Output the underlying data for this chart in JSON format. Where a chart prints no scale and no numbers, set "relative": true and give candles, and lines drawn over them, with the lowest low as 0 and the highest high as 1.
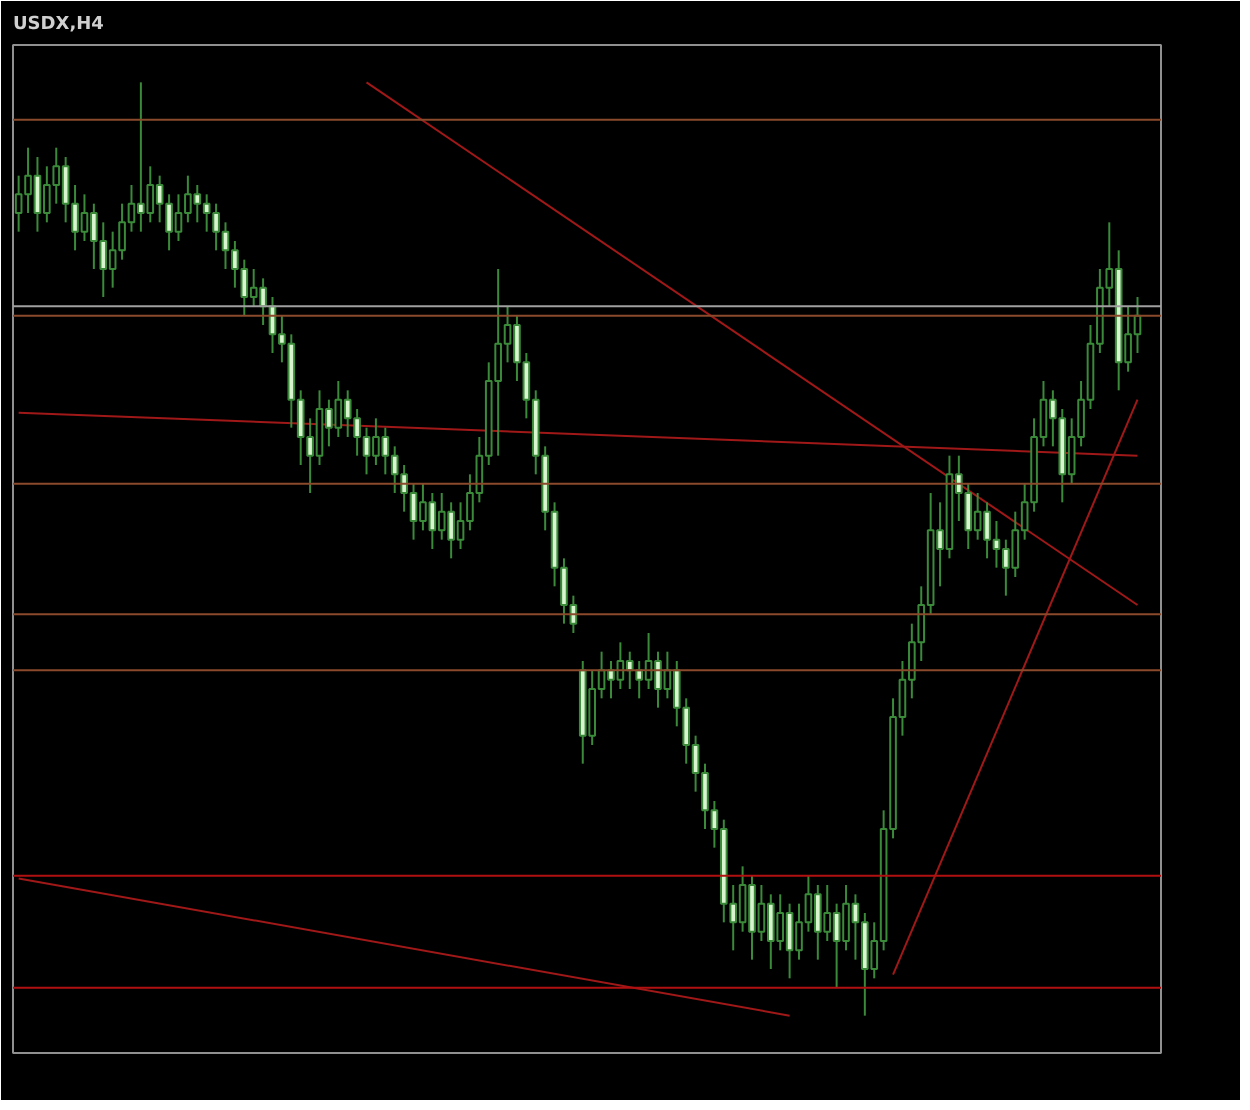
{
  "chart_data": {
    "type": "candlestick",
    "title": "USDX,H4",
    "relative": true,
    "grid": false,
    "categories": [
      null,
      null,
      null,
      null,
      null,
      null,
      null,
      null,
      null,
      null,
      null,
      null,
      null,
      null,
      null,
      null,
      null,
      null,
      null,
      null,
      null,
      null,
      null,
      null,
      null,
      null,
      null,
      null,
      null,
      null,
      null,
      null,
      null,
      null,
      null,
      null,
      null,
      null,
      null,
      null,
      null,
      null,
      null,
      null,
      null,
      null,
      null,
      null,
      null,
      null,
      null,
      null,
      null,
      null,
      null,
      null,
      null,
      null,
      null,
      null,
      null,
      null,
      null,
      null,
      null,
      null,
      null,
      null,
      null,
      null,
      null,
      null,
      null,
      null,
      null,
      null,
      null,
      null,
      null,
      null,
      null,
      null,
      null,
      null,
      null,
      null,
      null,
      null,
      null,
      null,
      null,
      null,
      null,
      null,
      null,
      null,
      null,
      null,
      null,
      null,
      null,
      null,
      null,
      null,
      null,
      null,
      null,
      null,
      null,
      null,
      null,
      null,
      null,
      null,
      null,
      null,
      null,
      null,
      null,
      null
    ],
    "ohlc": [
      [
        0.86,
        0.9,
        0.84,
        0.88
      ],
      [
        0.88,
        0.93,
        0.86,
        0.9
      ],
      [
        0.9,
        0.92,
        0.84,
        0.86
      ],
      [
        0.86,
        0.91,
        0.85,
        0.89
      ],
      [
        0.89,
        0.93,
        0.87,
        0.91
      ],
      [
        0.91,
        0.92,
        0.85,
        0.87
      ],
      [
        0.87,
        0.89,
        0.82,
        0.84
      ],
      [
        0.84,
        0.88,
        0.83,
        0.86
      ],
      [
        0.86,
        0.87,
        0.8,
        0.83
      ],
      [
        0.83,
        0.85,
        0.77,
        0.8
      ],
      [
        0.8,
        0.84,
        0.78,
        0.82
      ],
      [
        0.82,
        0.87,
        0.81,
        0.85
      ],
      [
        0.85,
        0.89,
        0.84,
        0.87
      ],
      [
        0.87,
        1,
        0.84,
        0.86
      ],
      [
        0.86,
        0.91,
        0.85,
        0.89
      ],
      [
        0.89,
        0.9,
        0.85,
        0.87
      ],
      [
        0.87,
        0.88,
        0.82,
        0.84
      ],
      [
        0.84,
        0.88,
        0.83,
        0.86
      ],
      [
        0.86,
        0.9,
        0.85,
        0.88
      ],
      [
        0.88,
        0.89,
        0.85,
        0.87
      ],
      [
        0.87,
        0.88,
        0.84,
        0.86
      ],
      [
        0.86,
        0.87,
        0.82,
        0.84
      ],
      [
        0.84,
        0.85,
        0.8,
        0.82
      ],
      [
        0.82,
        0.83,
        0.78,
        0.8
      ],
      [
        0.8,
        0.81,
        0.75,
        0.77
      ],
      [
        0.77,
        0.8,
        0.76,
        0.78
      ],
      [
        0.78,
        0.79,
        0.74,
        0.76
      ],
      [
        0.76,
        0.77,
        0.71,
        0.73
      ],
      [
        0.73,
        0.75,
        0.7,
        0.72
      ],
      [
        0.72,
        0.73,
        0.63,
        0.66
      ],
      [
        0.66,
        0.67,
        0.59,
        0.62
      ],
      [
        0.62,
        0.64,
        0.56,
        0.6
      ],
      [
        0.6,
        0.67,
        0.59,
        0.65
      ],
      [
        0.65,
        0.66,
        0.61,
        0.63
      ],
      [
        0.63,
        0.68,
        0.62,
        0.66
      ],
      [
        0.66,
        0.67,
        0.62,
        0.64
      ],
      [
        0.64,
        0.65,
        0.6,
        0.62
      ],
      [
        0.62,
        0.63,
        0.58,
        0.6
      ],
      [
        0.6,
        0.64,
        0.59,
        0.62
      ],
      [
        0.62,
        0.63,
        0.58,
        0.6
      ],
      [
        0.6,
        0.61,
        0.56,
        0.58
      ],
      [
        0.58,
        0.59,
        0.54,
        0.56
      ],
      [
        0.56,
        0.57,
        0.51,
        0.53
      ],
      [
        0.53,
        0.57,
        0.52,
        0.55
      ],
      [
        0.55,
        0.56,
        0.5,
        0.52
      ],
      [
        0.52,
        0.56,
        0.51,
        0.54
      ],
      [
        0.54,
        0.55,
        0.49,
        0.51
      ],
      [
        0.51,
        0.55,
        0.5,
        0.53
      ],
      [
        0.53,
        0.58,
        0.52,
        0.56
      ],
      [
        0.56,
        0.62,
        0.55,
        0.6
      ],
      [
        0.6,
        0.7,
        0.59,
        0.68
      ],
      [
        0.68,
        0.8,
        0.6,
        0.72
      ],
      [
        0.72,
        0.76,
        0.7,
        0.74
      ],
      [
        0.74,
        0.75,
        0.68,
        0.7
      ],
      [
        0.7,
        0.71,
        0.64,
        0.66
      ],
      [
        0.66,
        0.67,
        0.58,
        0.6
      ],
      [
        0.6,
        0.61,
        0.52,
        0.54
      ],
      [
        0.54,
        0.55,
        0.46,
        0.48
      ],
      [
        0.48,
        0.49,
        0.42,
        0.44
      ],
      [
        0.44,
        0.45,
        0.41,
        0.42
      ],
      [
        0.37,
        0.38,
        0.27,
        0.3
      ],
      [
        0.3,
        0.37,
        0.29,
        0.35
      ],
      [
        0.35,
        0.39,
        0.34,
        0.37
      ],
      [
        0.37,
        0.38,
        0.34,
        0.36
      ],
      [
        0.36,
        0.4,
        0.35,
        0.38
      ],
      [
        0.38,
        0.39,
        0.35,
        0.37
      ],
      [
        0.37,
        0.38,
        0.34,
        0.36
      ],
      [
        0.36,
        0.41,
        0.35,
        0.38
      ],
      [
        0.38,
        0.39,
        0.33,
        0.35
      ],
      [
        0.35,
        0.39,
        0.34,
        0.37
      ],
      [
        0.37,
        0.38,
        0.31,
        0.33
      ],
      [
        0.33,
        0.34,
        0.27,
        0.29
      ],
      [
        0.29,
        0.3,
        0.24,
        0.26
      ],
      [
        0.26,
        0.27,
        0.2,
        0.22
      ],
      [
        0.22,
        0.23,
        0.18,
        0.2
      ],
      [
        0.2,
        0.21,
        0.1,
        0.12
      ],
      [
        0.12,
        0.14,
        0.07,
        0.1
      ],
      [
        0.1,
        0.16,
        0.09,
        0.14
      ],
      [
        0.14,
        0.15,
        0.06,
        0.09
      ],
      [
        0.09,
        0.14,
        0.08,
        0.12
      ],
      [
        0.12,
        0.13,
        0.05,
        0.08
      ],
      [
        0.08,
        0.13,
        0.07,
        0.11
      ],
      [
        0.11,
        0.12,
        0.04,
        0.07
      ],
      [
        0.07,
        0.12,
        0.06,
        0.1
      ],
      [
        0.1,
        0.15,
        0.09,
        0.13
      ],
      [
        0.13,
        0.14,
        0.06,
        0.09
      ],
      [
        0.09,
        0.14,
        0.08,
        0.11
      ],
      [
        0.11,
        0.12,
        0.03,
        0.08
      ],
      [
        0.08,
        0.14,
        0.07,
        0.12
      ],
      [
        0.12,
        0.13,
        0.06,
        0.1
      ],
      [
        0.1,
        0.11,
        0,
        0.05
      ],
      [
        0.05,
        0.1,
        0.04,
        0.08
      ],
      [
        0.08,
        0.22,
        0.07,
        0.2
      ],
      [
        0.2,
        0.34,
        0.19,
        0.32
      ],
      [
        0.32,
        0.38,
        0.3,
        0.36
      ],
      [
        0.36,
        0.42,
        0.34,
        0.4
      ],
      [
        0.4,
        0.46,
        0.38,
        0.44
      ],
      [
        0.44,
        0.56,
        0.43,
        0.52
      ],
      [
        0.52,
        0.55,
        0.46,
        0.5
      ],
      [
        0.5,
        0.6,
        0.49,
        0.58
      ],
      [
        0.58,
        0.6,
        0.53,
        0.56
      ],
      [
        0.56,
        0.57,
        0.5,
        0.52
      ],
      [
        0.52,
        0.56,
        0.51,
        0.54
      ],
      [
        0.54,
        0.55,
        0.49,
        0.51
      ],
      [
        0.51,
        0.53,
        0.48,
        0.5
      ],
      [
        0.5,
        0.51,
        0.45,
        0.48
      ],
      [
        0.48,
        0.54,
        0.47,
        0.52
      ],
      [
        0.52,
        0.57,
        0.51,
        0.55
      ],
      [
        0.55,
        0.64,
        0.54,
        0.62
      ],
      [
        0.62,
        0.68,
        0.61,
        0.66
      ],
      [
        0.66,
        0.67,
        0.61,
        0.64
      ],
      [
        0.64,
        0.65,
        0.55,
        0.58
      ],
      [
        0.58,
        0.64,
        0.57,
        0.62
      ],
      [
        0.62,
        0.68,
        0.61,
        0.66
      ],
      [
        0.66,
        0.74,
        0.65,
        0.72
      ],
      [
        0.72,
        0.8,
        0.71,
        0.78
      ],
      [
        0.78,
        0.85,
        0.76,
        0.8
      ],
      [
        0.8,
        0.82,
        0.67,
        0.7
      ],
      [
        0.7,
        0.76,
        0.69,
        0.73
      ],
      [
        0.73,
        0.77,
        0.71,
        0.75
      ]
    ],
    "series": [
      {
        "type": "line",
        "color": "#a01818",
        "values": [
          null,
          null,
          null,
          null,
          null,
          null,
          null,
          null,
          null,
          null,
          null,
          null,
          null,
          null,
          null,
          null,
          null,
          null,
          null,
          null,
          null,
          null,
          null,
          null,
          null,
          null,
          null,
          null,
          null,
          null,
          null,
          null,
          null,
          null,
          null,
          null,
          null,
          1,
          null,
          null,
          null,
          null,
          null,
          null,
          null,
          null,
          null,
          null,
          null,
          null,
          null,
          null,
          null,
          null,
          null,
          null,
          null,
          null,
          null,
          null,
          null,
          null,
          null,
          null,
          null,
          null,
          null,
          null,
          null,
          null,
          null,
          null,
          null,
          null,
          null,
          null,
          null,
          null,
          null,
          null,
          null,
          null,
          null,
          null,
          null,
          null,
          null,
          null,
          null,
          null,
          null,
          null,
          null,
          null,
          null,
          null,
          null,
          null,
          null,
          null,
          null,
          null,
          null,
          null,
          null,
          null,
          null,
          null,
          null,
          null,
          null,
          null,
          null,
          null,
          null,
          null,
          null,
          null,
          null,
          0.44
        ]
      },
      {
        "type": "line",
        "color": "#a01818",
        "values": [
          0.646,
          null,
          null,
          null,
          null,
          null,
          null,
          null,
          null,
          null,
          null,
          null,
          null,
          null,
          null,
          null,
          null,
          null,
          null,
          null,
          null,
          null,
          null,
          null,
          null,
          null,
          null,
          null,
          null,
          null,
          null,
          null,
          null,
          null,
          null,
          null,
          null,
          null,
          null,
          null,
          null,
          null,
          null,
          null,
          null,
          null,
          null,
          null,
          null,
          null,
          null,
          null,
          null,
          null,
          null,
          null,
          null,
          null,
          null,
          null,
          null,
          null,
          null,
          null,
          null,
          null,
          null,
          null,
          null,
          null,
          null,
          null,
          null,
          null,
          null,
          null,
          null,
          null,
          null,
          null,
          null,
          null,
          null,
          null,
          null,
          null,
          null,
          null,
          null,
          null,
          null,
          null,
          null,
          null,
          null,
          null,
          null,
          null,
          null,
          null,
          null,
          null,
          null,
          null,
          null,
          null,
          null,
          null,
          null,
          null,
          null,
          null,
          null,
          null,
          null,
          null,
          null,
          null,
          null,
          0.6
        ]
      },
      {
        "type": "line",
        "color": "#a01818",
        "values": [
          0.147,
          null,
          null,
          null,
          null,
          null,
          null,
          null,
          null,
          null,
          null,
          null,
          null,
          null,
          null,
          null,
          null,
          null,
          null,
          null,
          null,
          null,
          null,
          null,
          null,
          null,
          null,
          null,
          null,
          null,
          null,
          null,
          null,
          null,
          null,
          null,
          null,
          null,
          null,
          null,
          null,
          null,
          null,
          null,
          null,
          null,
          null,
          null,
          null,
          null,
          null,
          null,
          null,
          null,
          null,
          null,
          null,
          null,
          null,
          null,
          null,
          null,
          null,
          null,
          null,
          null,
          null,
          null,
          null,
          null,
          null,
          null,
          null,
          null,
          null,
          null,
          null,
          null,
          null,
          null,
          null,
          null,
          0,
          null,
          null,
          null,
          null,
          null,
          null,
          null,
          null,
          null,
          null,
          null,
          null,
          null,
          null,
          null,
          null,
          null,
          null,
          null,
          null,
          null,
          null,
          null,
          null,
          null,
          null,
          null,
          null,
          null,
          null,
          null,
          null,
          null,
          null,
          null,
          null,
          null
        ]
      },
      {
        "type": "line",
        "color": "#a01818",
        "values": [
          null,
          null,
          null,
          null,
          null,
          null,
          null,
          null,
          null,
          null,
          null,
          null,
          null,
          null,
          null,
          null,
          null,
          null,
          null,
          null,
          null,
          null,
          null,
          null,
          null,
          null,
          null,
          null,
          null,
          null,
          null,
          null,
          null,
          null,
          null,
          null,
          null,
          null,
          null,
          null,
          null,
          null,
          null,
          null,
          null,
          null,
          null,
          null,
          null,
          null,
          null,
          null,
          null,
          null,
          null,
          null,
          null,
          null,
          null,
          null,
          null,
          null,
          null,
          null,
          null,
          null,
          null,
          null,
          null,
          null,
          null,
          null,
          null,
          null,
          null,
          null,
          null,
          null,
          null,
          null,
          null,
          null,
          null,
          null,
          null,
          null,
          null,
          null,
          null,
          null,
          null,
          null,
          null,
          0.044,
          null,
          null,
          null,
          null,
          null,
          null,
          null,
          null,
          null,
          null,
          null,
          null,
          null,
          null,
          null,
          null,
          null,
          null,
          null,
          null,
          null,
          null,
          null,
          null,
          null,
          0.66
        ]
      }
    ],
    "ref_lines": [
      {
        "axis": "y",
        "value": 0.96,
        "color": "#8b4a2b"
      },
      {
        "axis": "y",
        "value": 0.76,
        "color": "#a0a0a0"
      },
      {
        "axis": "y",
        "value": 0.75,
        "color": "#8b4a2b"
      },
      {
        "axis": "y",
        "value": 0.57,
        "color": "#8b4a2b"
      },
      {
        "axis": "y",
        "value": 0.43,
        "color": "#8b4a2b"
      },
      {
        "axis": "y",
        "value": 0.37,
        "color": "#8b4a2b"
      },
      {
        "axis": "y",
        "value": 0.15,
        "color": "#b01010"
      },
      {
        "axis": "y",
        "value": 0.03,
        "color": "#b01010"
      }
    ]
  }
}
